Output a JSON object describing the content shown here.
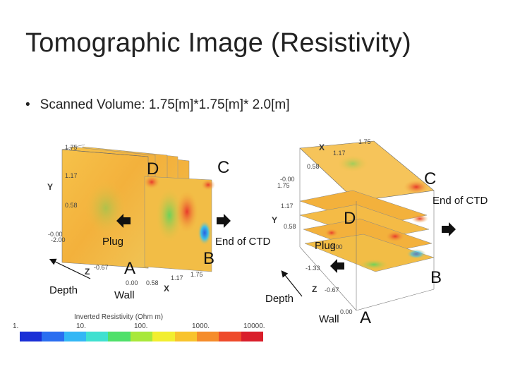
{
  "slide": {
    "title": "Tomographic Image (Resistivity)",
    "bullet_marker": "•",
    "bullet": "Scanned Volume: 1.75[m]*1.75[m]* 2.0[m]"
  },
  "left_view": {
    "labels": {
      "D": "D",
      "C": "C",
      "A": "A",
      "B": "B",
      "plug": "Plug",
      "end_of_ctd": "End of CTD",
      "depth": "Depth",
      "wall": "Wall"
    },
    "ticks": {
      "y_top": "1.75",
      "y_mid": "1.17",
      "y_low": "0.58",
      "y_zero": "-0.00",
      "z_neg2": "-2.00",
      "z_067": "-0.67",
      "x_zero": "0.00",
      "x_058": "0.58",
      "x_117": "1.17",
      "x_175": "1.75"
    },
    "axes": {
      "y": "Y",
      "z": "Z",
      "x": "X"
    }
  },
  "right_view": {
    "labels": {
      "C": "C",
      "D": "D",
      "B": "B",
      "A": "A",
      "plug": "Plug",
      "end_of_ctd": "End of CTD",
      "depth": "Depth",
      "wall": "Wall"
    },
    "ticks": {
      "x_175": "1.75",
      "x_117": "1.17",
      "x_058": "0.58",
      "y_zero": "-0.00",
      "y_175": "1.75",
      "y_117": "1.17",
      "y_058": "0.58",
      "z_067": "-0.67",
      "z_133": "-1.33",
      "z_000": "0.00",
      "mid_zero": "0.00"
    },
    "axes": {
      "x": "X",
      "y": "Y",
      "z": "Z"
    }
  },
  "colorbar": {
    "title": "Inverted Resistivity (Ohm m)",
    "ticks": [
      "1.",
      "10.",
      "100.",
      "1000.",
      "10000."
    ],
    "colors": [
      "#1a2fd6",
      "#2a6ef0",
      "#33b7f5",
      "#3fe0d0",
      "#4fe06a",
      "#a8e83a",
      "#f2ee2f",
      "#f8c32c",
      "#f58c2a",
      "#ee4a2a",
      "#d91e2a"
    ]
  }
}
